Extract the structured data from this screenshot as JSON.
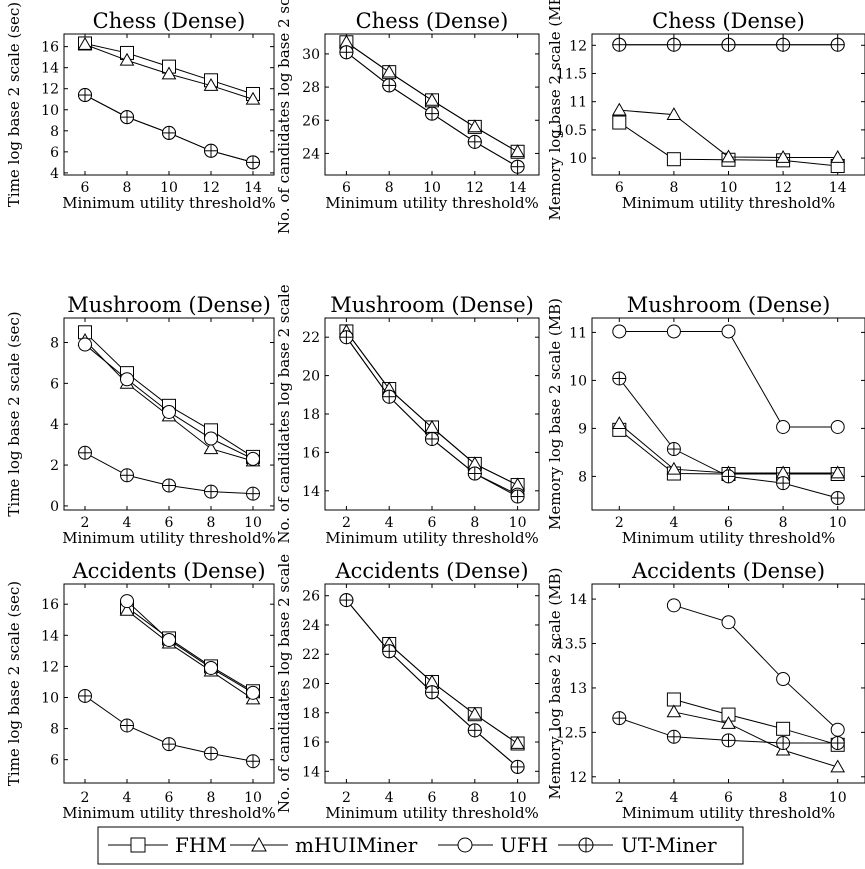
{
  "legend": [
    {
      "name": "FHM",
      "marker": "square"
    },
    {
      "name": "mHUIMiner",
      "marker": "triangle"
    },
    {
      "name": "UFH",
      "marker": "circle"
    },
    {
      "name": "UT-Miner",
      "marker": "oplus"
    }
  ],
  "chart_data": [
    {
      "type": "line",
      "title": "Chess (Dense)",
      "xlabel": "Minimum utility threshold%",
      "ylabel": "Time log base 2 scale (sec)",
      "xlim": [
        5,
        15
      ],
      "ylim": [
        3.8,
        17.2
      ],
      "xticks": [
        6,
        8,
        10,
        12,
        14
      ],
      "xtick_labels": [
        "6",
        "8",
        "10",
        "12",
        "14"
      ],
      "yticks": [
        4,
        6,
        8,
        10,
        12,
        14,
        16
      ],
      "ytick_labels": [
        "4",
        "6",
        "8",
        "10",
        "12",
        "14",
        "16"
      ],
      "x": [
        6,
        8,
        10,
        12,
        14
      ],
      "series": [
        {
          "name": "FHM",
          "values": [
            16.3,
            15.4,
            14.1,
            12.8,
            11.5
          ]
        },
        {
          "name": "mHUIMiner",
          "values": [
            16.2,
            14.7,
            13.4,
            12.3,
            11.0
          ]
        },
        {
          "name": "UFH",
          "values": [
            11.4,
            9.3,
            7.8,
            6.1,
            5.0
          ]
        },
        {
          "name": "UT-Miner",
          "values": [
            11.4,
            9.3,
            7.8,
            6.1,
            5.0
          ]
        }
      ]
    },
    {
      "type": "line",
      "title": "Chess (Dense)",
      "xlabel": "Minimum utility threshold%",
      "ylabel": "No. of candidates log base 2 scale",
      "xlim": [
        5,
        15
      ],
      "ylim": [
        22.7,
        31.2
      ],
      "xticks": [
        6,
        8,
        10,
        12,
        14
      ],
      "xtick_labels": [
        "6",
        "8",
        "10",
        "12",
        "14"
      ],
      "yticks": [
        24,
        26,
        28,
        30
      ],
      "ytick_labels": [
        "24",
        "26",
        "28",
        "30"
      ],
      "x": [
        6,
        8,
        10,
        12,
        14
      ],
      "series": [
        {
          "name": "FHM",
          "values": [
            30.7,
            28.9,
            27.2,
            25.6,
            24.1
          ]
        },
        {
          "name": "mHUIMiner",
          "values": [
            30.7,
            28.9,
            27.2,
            25.6,
            24.1
          ]
        },
        {
          "name": "UFH",
          "values": [
            30.1,
            28.1,
            26.4,
            24.7,
            23.2
          ]
        },
        {
          "name": "UT-Miner",
          "values": [
            30.1,
            28.1,
            26.4,
            24.7,
            23.2
          ]
        }
      ]
    },
    {
      "type": "line",
      "title": "Chess (Dense)",
      "xlabel": "Minimum utility threshold%",
      "ylabel": "Memory log base 2 scale (MB)",
      "xlim": [
        5,
        15
      ],
      "ylim": [
        9.7,
        12.2
      ],
      "xticks": [
        6,
        8,
        10,
        12,
        14
      ],
      "xtick_labels": [
        "6",
        "8",
        "10",
        "12",
        "14"
      ],
      "yticks": [
        10,
        10.5,
        11,
        11.5,
        12
      ],
      "ytick_labels": [
        "10",
        "10.5",
        "11",
        "11.5",
        "12"
      ],
      "x": [
        6,
        8,
        10,
        12,
        14
      ],
      "series": [
        {
          "name": "FHM",
          "values": [
            10.63,
            9.98,
            9.97,
            9.96,
            9.86
          ]
        },
        {
          "name": "mHUIMiner",
          "values": [
            10.85,
            10.77,
            10.02,
            10.01,
            10.01
          ]
        },
        {
          "name": "UFH",
          "values": [
            12.01,
            12.01,
            12.01,
            12.01,
            12.01
          ]
        },
        {
          "name": "UT-Miner",
          "values": [
            12.01,
            12.01,
            12.01,
            12.01,
            12.01
          ]
        }
      ]
    },
    {
      "type": "line",
      "title": "Mushroom (Dense)",
      "xlabel": "Minimum utility threshold%",
      "ylabel": "Time log base 2 scale (sec)",
      "xlim": [
        1,
        11
      ],
      "ylim": [
        -0.2,
        9.2
      ],
      "xticks": [
        2,
        4,
        6,
        8,
        10
      ],
      "xtick_labels": [
        "2",
        "4",
        "6",
        "8",
        "10"
      ],
      "yticks": [
        0,
        2,
        4,
        6,
        8
      ],
      "ytick_labels": [
        "0",
        "2",
        "4",
        "6",
        "8"
      ],
      "x": [
        2,
        4,
        6,
        8,
        10
      ],
      "series": [
        {
          "name": "FHM",
          "values": [
            8.5,
            6.5,
            4.9,
            3.7,
            2.4
          ]
        },
        {
          "name": "mHUIMiner",
          "values": [
            8.1,
            6.0,
            4.4,
            2.8,
            2.2
          ]
        },
        {
          "name": "UFH",
          "values": [
            7.9,
            6.2,
            4.6,
            3.3,
            2.3
          ]
        },
        {
          "name": "UT-Miner",
          "values": [
            2.6,
            1.5,
            1.0,
            0.7,
            0.6
          ]
        }
      ]
    },
    {
      "type": "line",
      "title": "Mushroom (Dense)",
      "xlabel": "Minimum utility threshold%",
      "ylabel": "No. of candidates log base 2 scale",
      "xlim": [
        1,
        11
      ],
      "ylim": [
        13.0,
        23.0
      ],
      "xticks": [
        2,
        4,
        6,
        8,
        10
      ],
      "xtick_labels": [
        "2",
        "4",
        "6",
        "8",
        "10"
      ],
      "yticks": [
        14,
        16,
        18,
        20,
        22
      ],
      "ytick_labels": [
        "14",
        "16",
        "18",
        "20",
        "22"
      ],
      "x": [
        2,
        4,
        6,
        8,
        10
      ],
      "series": [
        {
          "name": "FHM",
          "values": [
            22.3,
            19.3,
            17.3,
            15.4,
            14.3
          ]
        },
        {
          "name": "mHUIMiner",
          "values": [
            22.3,
            19.3,
            17.3,
            15.4,
            14.3
          ]
        },
        {
          "name": "UFH",
          "values": [
            22.0,
            18.9,
            16.7,
            14.9,
            13.8
          ]
        },
        {
          "name": "UT-Miner",
          "values": [
            22.0,
            18.9,
            16.7,
            14.9,
            13.7
          ]
        }
      ]
    },
    {
      "type": "line",
      "title": "Mushroom (Dense)",
      "xlabel": "Minimum utility threshold%",
      "ylabel": "Memory log base 2 scale (MB)",
      "xlim": [
        1,
        11
      ],
      "ylim": [
        7.3,
        11.3
      ],
      "xticks": [
        2,
        4,
        6,
        8,
        10
      ],
      "xtick_labels": [
        "2",
        "4",
        "6",
        "8",
        "10"
      ],
      "yticks": [
        8,
        9,
        10,
        11
      ],
      "ytick_labels": [
        "8",
        "9",
        "10",
        "11"
      ],
      "x": [
        2,
        4,
        6,
        8,
        10
      ],
      "series": [
        {
          "name": "FHM",
          "values": [
            8.97,
            8.06,
            8.05,
            8.05,
            8.05
          ]
        },
        {
          "name": "mHUIMiner",
          "values": [
            9.1,
            8.15,
            8.07,
            8.07,
            8.07
          ]
        },
        {
          "name": "UFH",
          "values": [
            11.02,
            11.02,
            11.02,
            9.03,
            9.03
          ]
        },
        {
          "name": "UT-Miner",
          "values": [
            10.04,
            8.57,
            8.0,
            7.86,
            7.55
          ]
        }
      ]
    },
    {
      "type": "line",
      "title": "Accidents (Dense)",
      "xlabel": "Minimum utility threshold%",
      "ylabel": "Time log base 2 scale (sec)",
      "xlim": [
        1,
        11
      ],
      "ylim": [
        4.5,
        17.3
      ],
      "xticks": [
        2,
        4,
        6,
        8,
        10
      ],
      "xtick_labels": [
        "2",
        "4",
        "6",
        "8",
        "10"
      ],
      "yticks": [
        6,
        8,
        10,
        12,
        14,
        16
      ],
      "ytick_labels": [
        "6",
        "8",
        "10",
        "12",
        "14",
        "16"
      ],
      "x": [
        2,
        4,
        6,
        8,
        10
      ],
      "series": [
        {
          "name": "FHM",
          "x": [
            4,
            6,
            8,
            10
          ],
          "values": [
            15.8,
            13.8,
            12.0,
            10.4
          ]
        },
        {
          "name": "mHUIMiner",
          "x": [
            4,
            6,
            8,
            10
          ],
          "values": [
            15.6,
            13.5,
            11.7,
            9.9
          ]
        },
        {
          "name": "UFH",
          "x": [
            4,
            6,
            8,
            10
          ],
          "values": [
            16.2,
            13.7,
            11.9,
            10.3
          ]
        },
        {
          "name": "UT-Miner",
          "x": [
            2,
            4,
            6,
            8,
            10
          ],
          "values": [
            10.1,
            8.2,
            7.0,
            6.4,
            5.9
          ]
        }
      ]
    },
    {
      "type": "line",
      "title": "Accidents (Dense)",
      "xlabel": "Minimum utility threshold%",
      "ylabel": "No. of candidates log base 2 scale",
      "xlim": [
        1,
        11
      ],
      "ylim": [
        13.2,
        26.8
      ],
      "xticks": [
        2,
        4,
        6,
        8,
        10
      ],
      "xtick_labels": [
        "2",
        "4",
        "6",
        "8",
        "10"
      ],
      "yticks": [
        14,
        16,
        18,
        20,
        22,
        24,
        26
      ],
      "ytick_labels": [
        "14",
        "16",
        "18",
        "20",
        "22",
        "24",
        "26"
      ],
      "x": [
        2,
        4,
        6,
        8,
        10
      ],
      "series": [
        {
          "name": "FHM",
          "x": [
            4,
            6,
            8,
            10
          ],
          "values": [
            22.7,
            20.1,
            17.9,
            15.9
          ]
        },
        {
          "name": "mHUIMiner",
          "x": [
            4,
            6,
            8,
            10
          ],
          "values": [
            22.7,
            20.1,
            17.9,
            15.9
          ]
        },
        {
          "name": "UFH",
          "x": [
            2,
            4,
            6,
            8,
            10
          ],
          "values": [
            25.7,
            22.2,
            19.4,
            16.8,
            14.3
          ]
        },
        {
          "name": "UT-Miner",
          "x": [
            2,
            4,
            6,
            8,
            10
          ],
          "values": [
            25.7,
            22.2,
            19.4,
            16.8,
            14.3
          ]
        }
      ]
    },
    {
      "type": "line",
      "title": "Accidents (Dense)",
      "xlabel": "Minimum utility threshold%",
      "ylabel": "Memory log base 2 scale (MB)",
      "xlim": [
        1,
        11
      ],
      "ylim": [
        11.93,
        14.17
      ],
      "xticks": [
        2,
        4,
        6,
        8,
        10
      ],
      "xtick_labels": [
        "2",
        "4",
        "6",
        "8",
        "10"
      ],
      "yticks": [
        12,
        12.5,
        13,
        13.5,
        14
      ],
      "ytick_labels": [
        "12",
        "12.5",
        "13",
        "13.5",
        "14"
      ],
      "x": [
        2,
        4,
        6,
        8,
        10
      ],
      "series": [
        {
          "name": "FHM",
          "x": [
            4,
            6,
            8,
            10
          ],
          "values": [
            12.87,
            12.7,
            12.54,
            12.36
          ]
        },
        {
          "name": "mHUIMiner",
          "x": [
            4,
            6,
            8,
            10
          ],
          "values": [
            12.73,
            12.6,
            12.3,
            12.11
          ]
        },
        {
          "name": "UFH",
          "x": [
            4,
            6,
            8,
            10
          ],
          "values": [
            13.93,
            13.74,
            13.1,
            12.53
          ]
        },
        {
          "name": "UT-Miner",
          "x": [
            2,
            4,
            6,
            8,
            10
          ],
          "values": [
            12.66,
            12.45,
            12.41,
            12.38,
            12.38
          ]
        }
      ]
    }
  ]
}
